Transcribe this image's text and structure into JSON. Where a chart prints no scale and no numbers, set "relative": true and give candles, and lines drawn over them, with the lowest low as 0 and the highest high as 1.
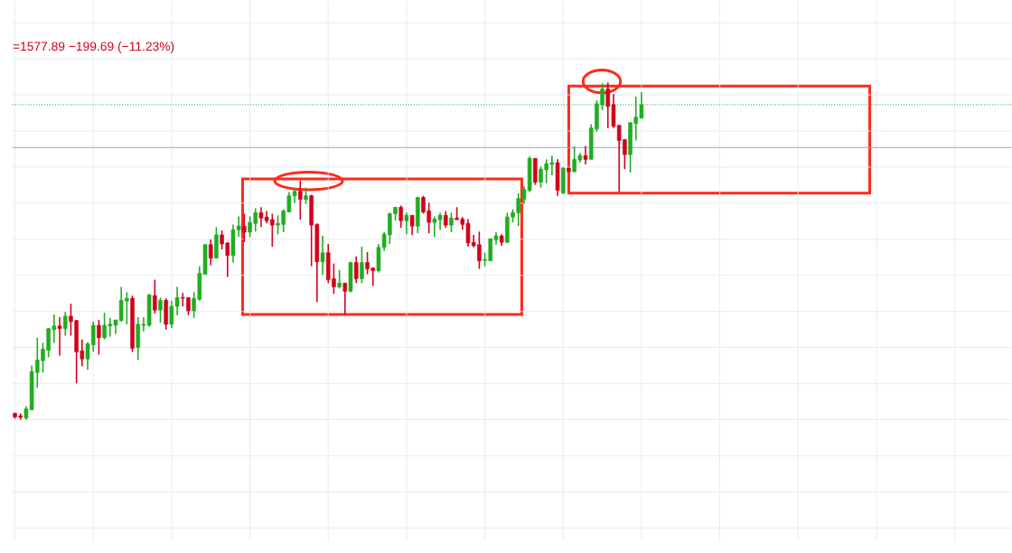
{
  "chart_data": {
    "type": "candlestick",
    "title": "=1577.89  −199.69 (−11.23%)",
    "relative": true,
    "grid": true,
    "categories": [
      null,
      null,
      null,
      null,
      null,
      null,
      null,
      null,
      null,
      null,
      null,
      null,
      null,
      null,
      null,
      null,
      null,
      null,
      null,
      null,
      null,
      null,
      null,
      null,
      null,
      null,
      null,
      null,
      null,
      null,
      null,
      null,
      null,
      null,
      null,
      null,
      null,
      null,
      null,
      null,
      null,
      null,
      null,
      null,
      null,
      null,
      null,
      null,
      null,
      null,
      null,
      null,
      null,
      null,
      null,
      null,
      null,
      null,
      null,
      null,
      null,
      null,
      null,
      null,
      null,
      null,
      null,
      null,
      null,
      null,
      null,
      null,
      null,
      null,
      null,
      null,
      null,
      null,
      null,
      null,
      null,
      null,
      null,
      null,
      null,
      null,
      null,
      null,
      null,
      null,
      null,
      null,
      null,
      null,
      null,
      null,
      null,
      null,
      null,
      null,
      null,
      null,
      null,
      null,
      null,
      null,
      null,
      null,
      null,
      null,
      null,
      null,
      null
    ],
    "ohlc": [
      [
        0.019,
        0.021,
        0.003,
        0.008
      ],
      [
        0.012,
        0.019,
        0,
        0.007
      ],
      [
        0.005,
        0.04,
        0,
        0.032
      ],
      [
        0.029,
        0.161,
        0.029,
        0.143
      ],
      [
        0.14,
        0.243,
        0.095,
        0.177
      ],
      [
        0.175,
        0.228,
        0.14,
        0.209
      ],
      [
        0.206,
        0.272,
        0.185,
        0.27
      ],
      [
        0.267,
        0.312,
        0.228,
        0.278
      ],
      [
        0.278,
        0.304,
        0.19,
        0.27
      ],
      [
        0.27,
        0.32,
        0.249,
        0.307
      ],
      [
        0.307,
        0.344,
        0.249,
        0.291
      ],
      [
        0.294,
        0.296,
        0.108,
        0.201
      ],
      [
        0.204,
        0.238,
        0.159,
        0.18
      ],
      [
        0.18,
        0.23,
        0.148,
        0.225
      ],
      [
        0.222,
        0.291,
        0.201,
        0.28
      ],
      [
        0.28,
        0.296,
        0.193,
        0.243
      ],
      [
        0.243,
        0.317,
        0.238,
        0.28
      ],
      [
        0.278,
        0.302,
        0.246,
        0.283
      ],
      [
        0.28,
        0.296,
        0.254,
        0.296
      ],
      [
        0.294,
        0.394,
        0.291,
        0.354
      ],
      [
        0.352,
        0.378,
        0.283,
        0.36
      ],
      [
        0.36,
        0.368,
        0.201,
        0.212
      ],
      [
        0.214,
        0.304,
        0.177,
        0.283
      ],
      [
        0.28,
        0.304,
        0.262,
        0.283
      ],
      [
        0.28,
        0.373,
        0.275,
        0.37
      ],
      [
        0.368,
        0.415,
        0.315,
        0.325
      ],
      [
        0.325,
        0.362,
        0.288,
        0.354
      ],
      [
        0.354,
        0.36,
        0.267,
        0.283
      ],
      [
        0.283,
        0.352,
        0.272,
        0.336
      ],
      [
        0.336,
        0.394,
        0.31,
        0.362
      ],
      [
        0.362,
        0.376,
        0.336,
        0.36
      ],
      [
        0.362,
        0.362,
        0.31,
        0.323
      ],
      [
        0.323,
        0.378,
        0.302,
        0.36
      ],
      [
        0.357,
        0.455,
        0.352,
        0.434
      ],
      [
        0.431,
        0.521,
        0.431,
        0.519
      ],
      [
        0.519,
        0.534,
        0.458,
        0.479
      ],
      [
        0.479,
        0.571,
        0.479,
        0.548
      ],
      [
        0.548,
        0.561,
        0.505,
        0.521
      ],
      [
        0.524,
        0.526,
        0.423,
        0.487
      ],
      [
        0.487,
        0.579,
        0.466,
        0.563
      ],
      [
        0.563,
        0.603,
        0.542,
        0.574
      ],
      [
        0.574,
        0.611,
        0.526,
        0.556
      ],
      [
        0.556,
        0.603,
        0.542,
        0.585
      ],
      [
        0.582,
        0.627,
        0.558,
        0.614
      ],
      [
        0.614,
        0.63,
        0.571,
        0.598
      ],
      [
        0.601,
        0.619,
        0.582,
        0.59
      ],
      [
        0.593,
        0.611,
        0.513,
        0.577
      ],
      [
        0.577,
        0.606,
        0.55,
        0.582
      ],
      [
        0.579,
        0.624,
        0.556,
        0.619
      ],
      [
        0.616,
        0.675,
        0.616,
        0.664
      ],
      [
        0.664,
        0.685,
        0.643,
        0.677
      ],
      [
        0.677,
        0.709,
        0.593,
        0.653
      ],
      [
        0.653,
        0.688,
        0.64,
        0.664
      ],
      [
        0.664,
        0.667,
        0.455,
        0.577
      ],
      [
        0.579,
        0.582,
        0.349,
        0.468
      ],
      [
        0.468,
        0.545,
        0.429,
        0.495
      ],
      [
        0.495,
        0.521,
        0.405,
        0.415
      ],
      [
        0.418,
        0.463,
        0.373,
        0.394
      ],
      [
        0.394,
        0.444,
        0.389,
        0.405
      ],
      [
        0.405,
        0.405,
        0.312,
        0.381
      ],
      [
        0.381,
        0.468,
        0.378,
        0.466
      ],
      [
        0.466,
        0.484,
        0.405,
        0.418
      ],
      [
        0.418,
        0.513,
        0.405,
        0.466
      ],
      [
        0.466,
        0.497,
        0.431,
        0.447
      ],
      [
        0.45,
        0.45,
        0.397,
        0.442
      ],
      [
        0.442,
        0.521,
        0.437,
        0.511
      ],
      [
        0.511,
        0.556,
        0.5,
        0.55
      ],
      [
        0.548,
        0.614,
        0.521,
        0.611
      ],
      [
        0.611,
        0.63,
        0.59,
        0.63
      ],
      [
        0.63,
        0.635,
        0.569,
        0.59
      ],
      [
        0.59,
        0.614,
        0.55,
        0.606
      ],
      [
        0.606,
        0.606,
        0.548,
        0.574
      ],
      [
        0.574,
        0.661,
        0.553,
        0.659
      ],
      [
        0.659,
        0.664,
        0.611,
        0.616
      ],
      [
        0.619,
        0.643,
        0.553,
        0.585
      ],
      [
        0.585,
        0.603,
        0.542,
        0.595
      ],
      [
        0.593,
        0.614,
        0.563,
        0.606
      ],
      [
        0.606,
        0.619,
        0.569,
        0.577
      ],
      [
        0.577,
        0.614,
        0.556,
        0.598
      ],
      [
        0.598,
        0.63,
        0.593,
        0.593
      ],
      [
        0.595,
        0.601,
        0.563,
        0.579
      ],
      [
        0.582,
        0.595,
        0.513,
        0.524
      ],
      [
        0.526,
        0.548,
        0.511,
        0.516
      ],
      [
        0.519,
        0.558,
        0.447,
        0.471
      ],
      [
        0.472,
        0.495,
        0.455,
        0.475
      ],
      [
        0.471,
        0.537,
        0.471,
        0.537
      ],
      [
        0.534,
        0.556,
        0.519,
        0.545
      ],
      [
        0.545,
        0.55,
        0.516,
        0.526
      ],
      [
        0.526,
        0.614,
        0.524,
        0.601
      ],
      [
        0.601,
        0.624,
        0.585,
        0.614
      ],
      [
        0.614,
        0.672,
        0.574,
        0.656
      ],
      [
        0.653,
        0.693,
        0.64,
        0.683
      ],
      [
        0.68,
        0.78,
        0.675,
        0.775
      ],
      [
        0.775,
        0.775,
        0.696,
        0.704
      ],
      [
        0.704,
        0.751,
        0.688,
        0.743
      ],
      [
        0.741,
        0.772,
        0.701,
        0.759
      ],
      [
        0.757,
        0.783,
        0.725,
        0.762
      ],
      [
        0.762,
        0.772,
        0.664,
        0.68
      ],
      [
        0.672,
        0.749,
        0.669,
        0.746
      ],
      [
        0.746,
        0.746,
        0.735,
        0.735
      ],
      [
        0.735,
        0.81,
        0.735,
        0.772
      ],
      [
        0.77,
        0.791,
        0.762,
        0.783
      ],
      [
        0.783,
        0.812,
        0.757,
        0.772
      ],
      [
        0.772,
        0.876,
        0.772,
        0.865
      ],
      [
        0.862,
        0.947,
        0.854,
        0.937
      ],
      [
        0.934,
        0.997,
        0.918,
        0.981
      ],
      [
        0.981,
        1,
        0.865,
        0.929
      ],
      [
        0.934,
        0.966,
        0.865,
        0.87
      ],
      [
        0.873,
        0.873,
        0.675,
        0.828
      ],
      [
        0.831,
        0.831,
        0.743,
        0.786
      ],
      [
        0.786,
        0.881,
        0.733,
        0.881
      ],
      [
        0.878,
        0.958,
        0.828,
        0.897
      ],
      [
        0.894,
        0.971,
        0.894,
        0.934
      ]
    ],
    "colors": [
      "#d0021b",
      "#d0021b",
      "#1fad1f",
      "#1fad1f",
      "#1fad1f",
      "#1fad1f",
      "#1fad1f",
      "#1fad1f",
      "#d0021b",
      "#1fad1f",
      "#d0021b",
      "#d0021b",
      "#d0021b",
      "#1fad1f",
      "#1fad1f",
      "#d0021b",
      "#1fad1f",
      "#1fad1f",
      "#1fad1f",
      "#1fad1f",
      "#1fad1f",
      "#d0021b",
      "#1fad1f",
      "#1fad1f",
      "#1fad1f",
      "#d0021b",
      "#1fad1f",
      "#d0021b",
      "#1fad1f",
      "#1fad1f",
      "#d0021b",
      "#d0021b",
      "#1fad1f",
      "#1fad1f",
      "#1fad1f",
      "#d0021b",
      "#1fad1f",
      "#d0021b",
      "#d0021b",
      "#1fad1f",
      "#1fad1f",
      "#d0021b",
      "#1fad1f",
      "#1fad1f",
      "#d0021b",
      "#d0021b",
      "#d0021b",
      "#1fad1f",
      "#1fad1f",
      "#1fad1f",
      "#1fad1f",
      "#d0021b",
      "#1fad1f",
      "#d0021b",
      "#d0021b",
      "#1fad1f",
      "#d0021b",
      "#d0021b",
      "#1fad1f",
      "#d0021b",
      "#1fad1f",
      "#d0021b",
      "#1fad1f",
      "#d0021b",
      "#d0021b",
      "#1fad1f",
      "#1fad1f",
      "#1fad1f",
      "#1fad1f",
      "#d0021b",
      "#1fad1f",
      "#d0021b",
      "#1fad1f",
      "#d0021b",
      "#d0021b",
      "#1fad1f",
      "#1fad1f",
      "#d0021b",
      "#1fad1f",
      "#d0021b",
      "#d0021b",
      "#d0021b",
      "#d0021b",
      "#d0021b",
      "#1fad1f",
      "#1fad1f",
      "#1fad1f",
      "#d0021b",
      "#1fad1f",
      "#1fad1f",
      "#1fad1f",
      "#1fad1f",
      "#1fad1f",
      "#d0021b",
      "#1fad1f",
      "#1fad1f",
      "#1fad1f",
      "#d0021b",
      "#1fad1f",
      "#d0021b",
      "#1fad1f",
      "#1fad1f",
      "#d0021b",
      "#1fad1f",
      "#1fad1f",
      "#1fad1f",
      "#d0021b",
      "#d0021b",
      "#d0021b",
      "#d0021b",
      "#1fad1f",
      "#1fad1f",
      "#1fad1f"
    ],
    "ref_lines": [
      {
        "axis": "y",
        "value": 0.934,
        "color": "#1f9e1f",
        "line_style": "dotted"
      },
      {
        "axis": "y",
        "value": 0.807,
        "color": "#9aa4ad",
        "line_style": "solid"
      }
    ]
  }
}
